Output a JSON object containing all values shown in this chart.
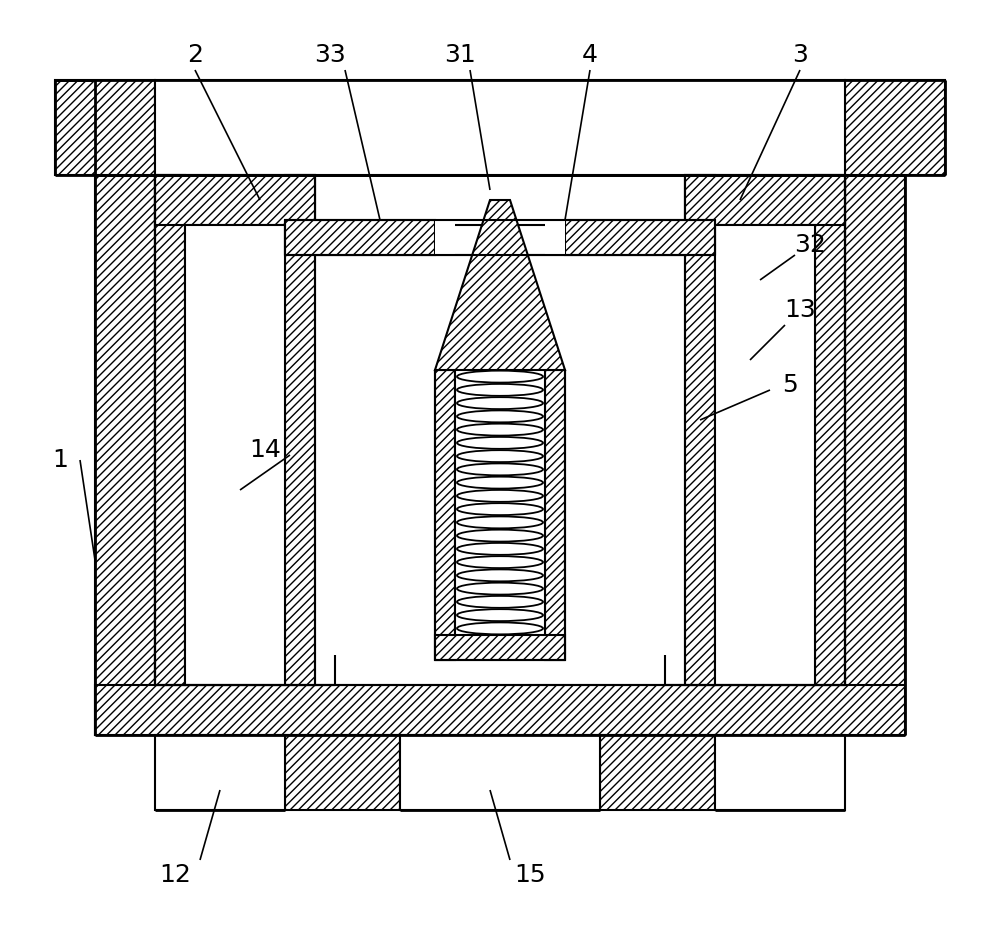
{
  "bg_color": "#ffffff",
  "line_color": "#000000",
  "figsize": [
    10.0,
    9.44
  ],
  "dpi": 100,
  "label_fontsize": 18
}
